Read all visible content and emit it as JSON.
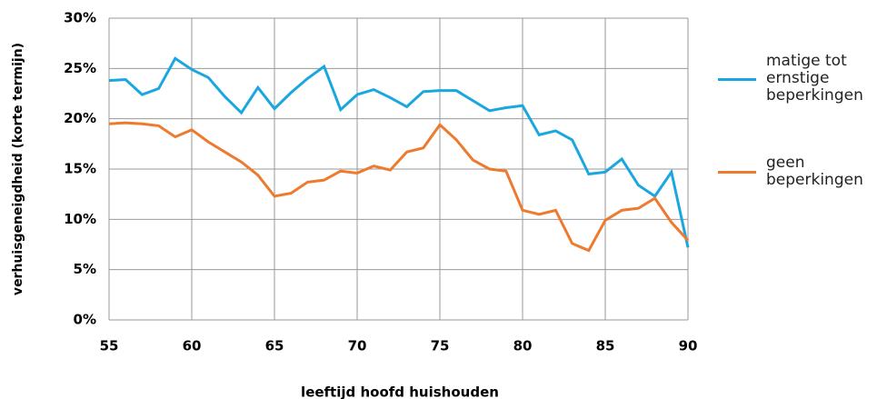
{
  "chart_data": {
    "type": "line",
    "x_label": "leeftijd hoofd huishouden",
    "y_label": "verhuisgeneigdheid (korte termijn)",
    "x": [
      55,
      56,
      57,
      58,
      59,
      60,
      61,
      62,
      63,
      64,
      65,
      66,
      67,
      68,
      69,
      70,
      71,
      72,
      73,
      74,
      75,
      76,
      77,
      78,
      79,
      80,
      81,
      82,
      83,
      84,
      85,
      86,
      87,
      88,
      89,
      90
    ],
    "series": [
      {
        "name": "matige tot ernstige beperkingen",
        "color": "#1aa7e0",
        "values": [
          23.8,
          23.9,
          22.4,
          23.0,
          26.0,
          24.9,
          24.1,
          22.2,
          20.6,
          23.1,
          21.0,
          22.6,
          24.0,
          25.2,
          20.9,
          22.4,
          22.9,
          22.1,
          21.2,
          22.7,
          22.8,
          22.8,
          21.8,
          20.8,
          21.1,
          21.3,
          18.4,
          18.8,
          17.9,
          14.5,
          14.7,
          16.0,
          13.4,
          12.3,
          14.7,
          7.2
        ]
      },
      {
        "name": "geen beperkingen",
        "color": "#ee7a2e",
        "values": [
          19.5,
          19.6,
          19.5,
          19.3,
          18.2,
          18.9,
          17.7,
          16.7,
          15.7,
          14.4,
          12.3,
          12.6,
          13.7,
          13.9,
          14.8,
          14.6,
          15.3,
          14.9,
          16.7,
          17.1,
          19.4,
          17.9,
          15.9,
          15.0,
          14.8,
          10.9,
          10.5,
          10.9,
          7.6,
          6.9,
          9.9,
          10.9,
          11.1,
          12.1,
          9.7,
          7.9
        ]
      }
    ],
    "xlim": [
      55,
      90
    ],
    "xticks": [
      55,
      60,
      65,
      70,
      75,
      80,
      85,
      90
    ],
    "ylim": [
      0,
      30
    ],
    "yticks": [
      {
        "value": 0,
        "label": "0%"
      },
      {
        "value": 5,
        "label": "5%"
      },
      {
        "value": 10,
        "label": "10%"
      },
      {
        "value": 15,
        "label": "15%"
      },
      {
        "value": 20,
        "label": "20%"
      },
      {
        "value": 25,
        "label": "25%"
      },
      {
        "value": 30,
        "label": "30%"
      }
    ],
    "grid": true,
    "legend": "right"
  }
}
